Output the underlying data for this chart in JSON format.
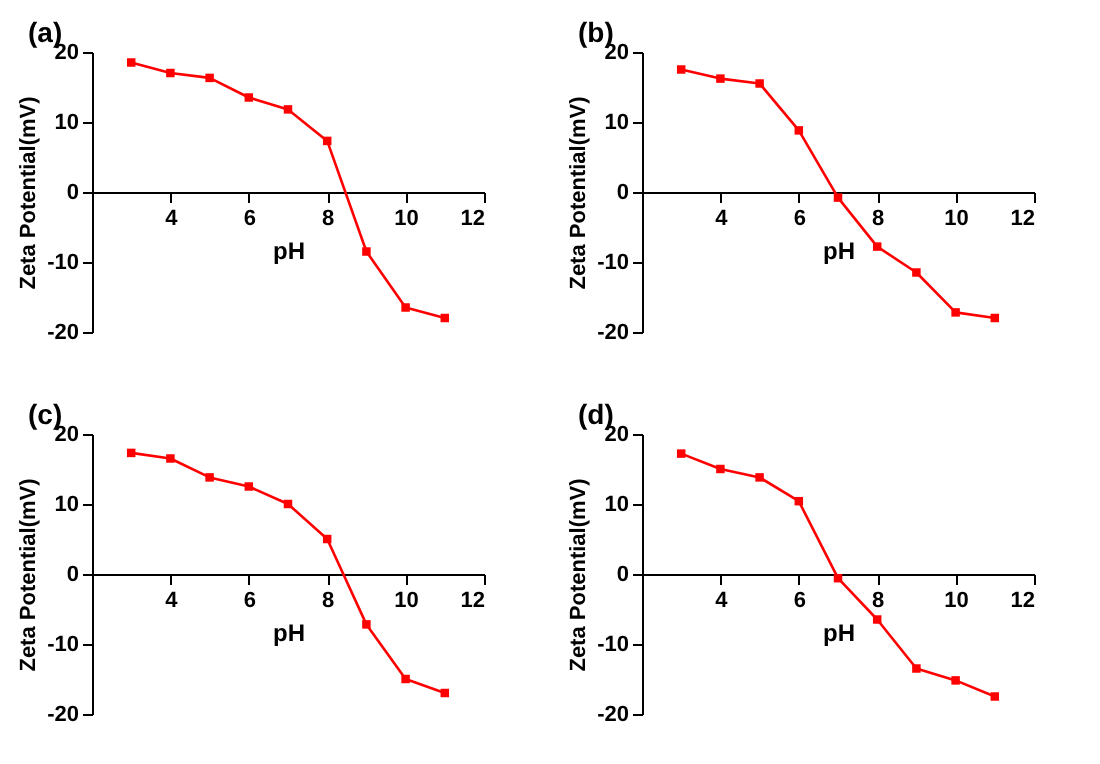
{
  "chart_data": [
    {
      "type": "line",
      "title": "(a)",
      "xlabel": "pH",
      "ylabel": "Zeta Potential(mV)",
      "x": [
        3,
        4,
        5,
        6,
        7,
        8,
        9,
        10,
        11
      ],
      "series": [
        {
          "color": "#ff0000",
          "values": [
            18.5,
            17,
            16.3,
            13.5,
            11.8,
            7.3,
            -8.5,
            -16.5,
            -18
          ]
        }
      ],
      "xlim": [
        2,
        12
      ],
      "xticks": [
        4,
        6,
        8,
        10,
        12
      ],
      "ylim": [
        -20,
        20
      ],
      "yticks": [
        -20,
        -10,
        0,
        10,
        20
      ],
      "marker": "square",
      "line_style": "solid",
      "grid": false,
      "legend": false
    },
    {
      "type": "line",
      "title": "(b)",
      "xlabel": "pH",
      "ylabel": "Zeta Potential(mV)",
      "x": [
        3,
        4,
        5,
        6,
        7,
        8,
        9,
        10,
        11
      ],
      "series": [
        {
          "color": "#ff0000",
          "values": [
            17.5,
            16.2,
            15.5,
            8.8,
            -0.8,
            -7.8,
            -11.5,
            -17.2,
            -18
          ]
        }
      ],
      "xlim": [
        2,
        12
      ],
      "xticks": [
        4,
        6,
        8,
        10,
        12
      ],
      "ylim": [
        -20,
        20
      ],
      "yticks": [
        -20,
        -10,
        0,
        10,
        20
      ],
      "marker": "square",
      "line_style": "solid",
      "grid": false,
      "legend": false
    },
    {
      "type": "line",
      "title": "(c)",
      "xlabel": "pH",
      "ylabel": "Zeta Potential(mV)",
      "x": [
        3,
        4,
        5,
        6,
        7,
        8,
        9,
        10,
        11
      ],
      "series": [
        {
          "color": "#ff0000",
          "values": [
            17.3,
            16.5,
            13.8,
            12.5,
            10,
            5,
            -7.2,
            -15,
            -17
          ]
        }
      ],
      "xlim": [
        2,
        12
      ],
      "xticks": [
        4,
        6,
        8,
        10,
        12
      ],
      "ylim": [
        -20,
        20
      ],
      "yticks": [
        -20,
        -10,
        0,
        10,
        20
      ],
      "marker": "square",
      "line_style": "solid",
      "grid": false,
      "legend": false
    },
    {
      "type": "line",
      "title": "(d)",
      "xlabel": "pH",
      "ylabel": "Zeta Potential(mV)",
      "x": [
        3,
        4,
        5,
        6,
        7,
        8,
        9,
        10,
        11
      ],
      "series": [
        {
          "color": "#ff0000",
          "values": [
            17.2,
            15,
            13.8,
            10.4,
            -0.6,
            -6.5,
            -13.5,
            -15.2,
            -17.5
          ]
        }
      ],
      "xlim": [
        2,
        12
      ],
      "xticks": [
        4,
        6,
        8,
        10,
        12
      ],
      "ylim": [
        -20,
        20
      ],
      "yticks": [
        -20,
        -10,
        0,
        10,
        20
      ],
      "marker": "square",
      "line_style": "solid",
      "grid": false,
      "legend": false
    }
  ]
}
